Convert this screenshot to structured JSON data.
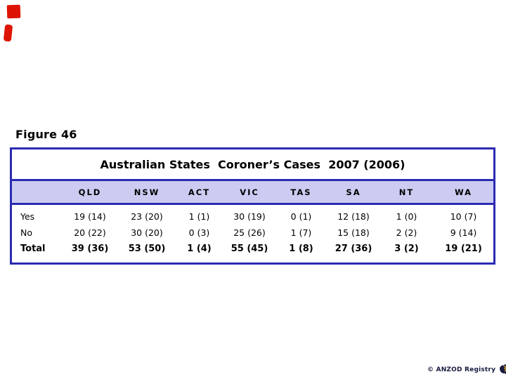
{
  "figure_label": "Figure 46",
  "footer": {
    "credit": "© ANZOD Registry"
  },
  "colors": {
    "table_border": "#2b2bb2",
    "header_bg": "#ccccf2",
    "annotation_red": "#dd1405",
    "footer_navy": "#181840",
    "logo_accent_yellow": "#c9a430"
  },
  "icons": {
    "logo": "anzod-registry-australia-logo-icon"
  },
  "annotations": {
    "marks": [
      "red-mark-top-left-1",
      "red-mark-top-left-2"
    ]
  },
  "chart_data": {
    "type": "table",
    "figure_label": "Figure 46",
    "title": "Australian States  Coroner’s Cases  2007 (2006)",
    "value_format": "2007 (2006)",
    "columns": [
      "QLD",
      "NSW",
      "ACT",
      "VIC",
      "TAS",
      "SA",
      "NT",
      "WA"
    ],
    "rows": [
      {
        "label": "Yes",
        "bold": false,
        "values": [
          "19 (14)",
          "23 (20)",
          "1 (1)",
          "30 (19)",
          "0 (1)",
          "12 (18)",
          "1 (0)",
          "10 (7)"
        ]
      },
      {
        "label": "No",
        "bold": false,
        "values": [
          "20 (22)",
          "30 (20)",
          "0 (3)",
          "25 (26)",
          "1 (7)",
          "15 (18)",
          "2 (2)",
          "9 (14)"
        ]
      },
      {
        "label": "Total",
        "bold": true,
        "values": [
          "39 (36)",
          "53 (50)",
          "1 (4)",
          "55 (45)",
          "1 (8)",
          "27 (36)",
          "3 (2)",
          "19 (21)"
        ]
      }
    ]
  }
}
